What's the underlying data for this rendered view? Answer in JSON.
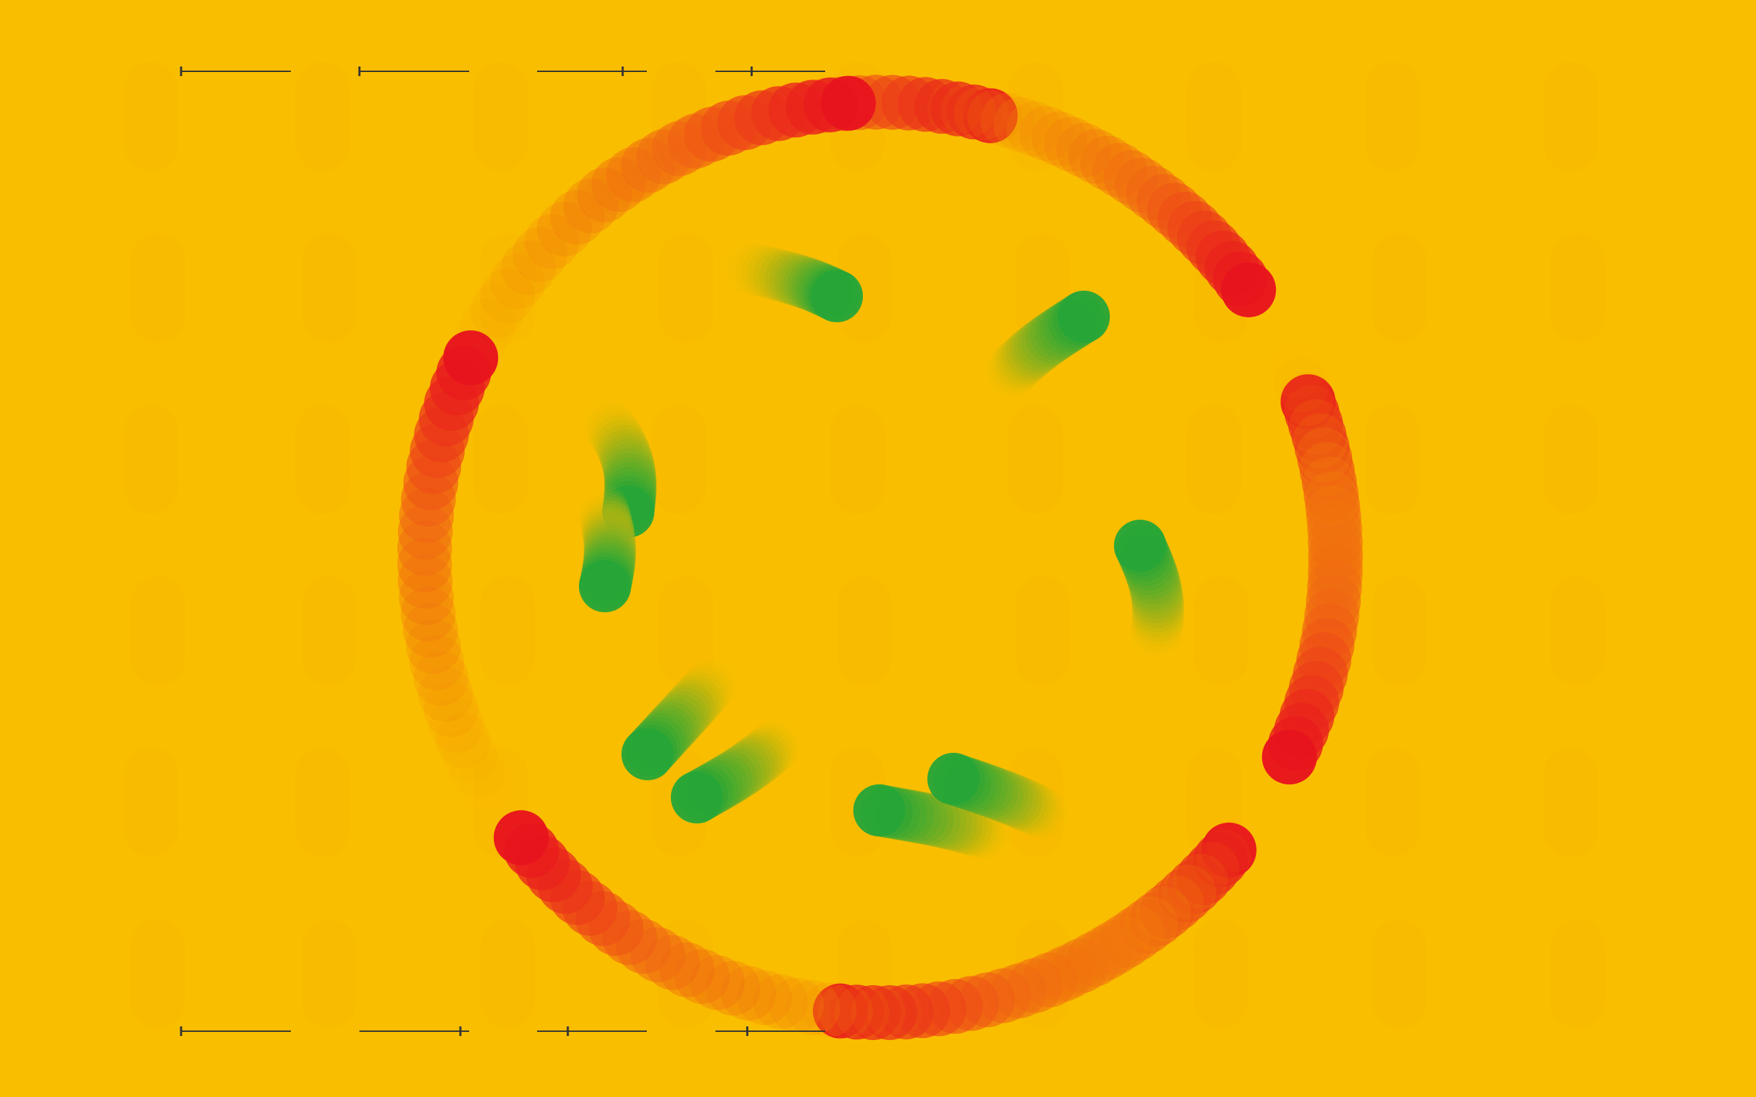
{
  "scene": {
    "background_color": "#FABE00",
    "ring_colors": {
      "head": "#E8141E",
      "mid": "#F06414",
      "tail": "#F5A000"
    },
    "orb_colors": {
      "head": "#27A637",
      "tail": "#FABE00"
    },
    "slider_line_color": "#333333"
  },
  "sliders": {
    "top": [
      {
        "label": "",
        "value": 0.0
      },
      {
        "label": "",
        "value": 0.0
      },
      {
        "label": "",
        "value": 0.78
      },
      {
        "label": "",
        "value": 0.33
      }
    ],
    "bottom": [
      {
        "label": "",
        "value": 0.0
      },
      {
        "label": "",
        "value": 0.92
      },
      {
        "label": "",
        "value": 0.28
      },
      {
        "label": "",
        "value": 0.29
      }
    ]
  }
}
